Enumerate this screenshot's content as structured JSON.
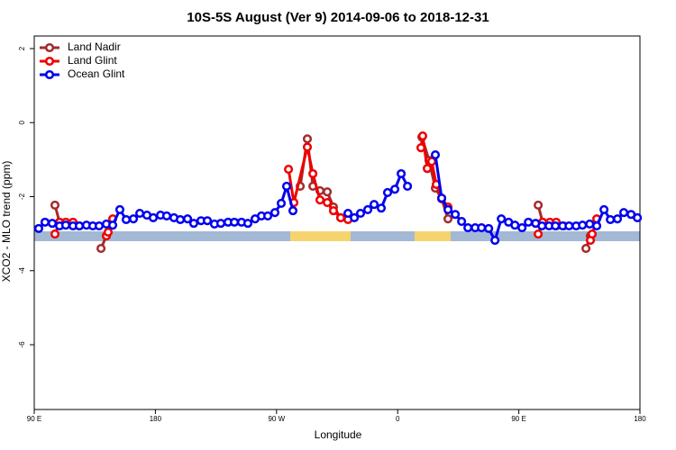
{
  "chart_data": {
    "type": "line",
    "title": "10S-5S August (Ver 9)   2014-09-06 to 2018-12-31",
    "xlabel": "Longitude",
    "ylabel": "XCO2 - MLO trend (ppm)",
    "xlim": [
      90,
      540
    ],
    "xticks": [
      {
        "value": 90,
        "label": "90 E"
      },
      {
        "value": 180,
        "label": "180"
      },
      {
        "value": 270,
        "label": "90 W"
      },
      {
        "value": 360,
        "label": "0"
      },
      {
        "value": 450,
        "label": "90 E"
      },
      {
        "value": 540,
        "label": "180"
      }
    ],
    "ylim": [
      -7.75,
      2.34
    ],
    "yticks": [
      2,
      0,
      -2,
      -4,
      -6
    ],
    "legend": "top-left",
    "series": [
      {
        "name": "Land Nadir",
        "color": "#a52a2a",
        "x": [
          105.4,
          108.8,
          113.4,
          118.8,
          123.5,
          null,
          139.6,
          143.6,
          null,
          287.6,
          292.9,
          297.0,
          302.3,
          307.7,
          312.3,
          317.7,
          null,
          378.0,
          383.3,
          388.0,
          392.7,
          397.4,
          null,
          464.4,
          467.7,
          473.1,
          477.8,
          483.1,
          null,
          499.9,
          503.2
        ],
        "values": [
          -2.23,
          -2.69,
          -2.74,
          -2.77,
          -2.79,
          null,
          -3.4,
          -3.06,
          null,
          -1.72,
          -0.44,
          -1.72,
          -1.84,
          -1.87,
          -2.28,
          -2.57,
          null,
          -0.39,
          -1.02,
          -1.77,
          -2.06,
          -2.6,
          null,
          -2.23,
          -2.69,
          -2.74,
          -2.79,
          -2.79,
          null,
          -3.4,
          -3.06
        ]
      },
      {
        "name": "Land Glint",
        "color": "#ee0000",
        "x": [
          105.4,
          108.8,
          113.4,
          118.8,
          123.5,
          null,
          143.6,
          144.9,
          148.3,
          null,
          278.9,
          282.9,
          292.9,
          297.0,
          302.3,
          307.7,
          312.3,
          317.7,
          323.1,
          null,
          377.3,
          378.6,
          382.0,
          385.3,
          388.7,
          392.7,
          397.4,
          null,
          464.4,
          467.7,
          473.1,
          477.8,
          483.1,
          null,
          503.2,
          504.5,
          507.9
        ],
        "values": [
          -3.01,
          -2.69,
          -2.69,
          -2.69,
          -2.79,
          null,
          -3.06,
          -2.96,
          -2.6,
          null,
          -1.26,
          -2.16,
          -0.66,
          -1.38,
          -2.09,
          -2.16,
          -2.38,
          -2.57,
          -2.62,
          null,
          -0.68,
          -0.36,
          -1.24,
          -1.05,
          -1.67,
          -2.04,
          -2.28,
          null,
          -3.01,
          -2.69,
          -2.69,
          -2.69,
          -2.79,
          null,
          -3.18,
          -3.01,
          -2.6
        ]
      },
      {
        "name": "Ocean Glint",
        "color": "#0000ee",
        "x": [
          93.3,
          98.0,
          103.4,
          108.8,
          113.4,
          118.8,
          123.5,
          128.8,
          133.5,
          138.2,
          143.6,
          148.3,
          153.6,
          158.3,
          163.7,
          168.4,
          173.7,
          178.4,
          183.8,
          188.4,
          193.8,
          198.5,
          203.9,
          208.5,
          213.9,
          218.6,
          223.9,
          228.6,
          234.0,
          238.7,
          244.0,
          248.7,
          254.1,
          258.8,
          263.5,
          268.8,
          273.5,
          277.5,
          282.2,
          null,
          323.1,
          327.8,
          332.4,
          337.8,
          342.5,
          347.8,
          352.5,
          357.9,
          362.6,
          367.3,
          null,
          388.0,
          392.7,
          397.4,
          402.8,
          407.5,
          412.2,
          417.6,
          422.3,
          427.6,
          432.3,
          437.0,
          442.4,
          447.1,
          452.4,
          457.1,
          462.5,
          467.2,
          472.5,
          477.2,
          482.6,
          487.3,
          492.6,
          497.3,
          502.7,
          507.9,
          513.3,
          518.0,
          523.3,
          528.0,
          533.4,
          538.1
        ],
        "values": [
          -2.86,
          -2.69,
          -2.72,
          -2.79,
          -2.77,
          -2.79,
          -2.79,
          -2.77,
          -2.79,
          -2.79,
          -2.74,
          -2.77,
          -2.35,
          -2.62,
          -2.6,
          -2.45,
          -2.5,
          -2.57,
          -2.5,
          -2.52,
          -2.57,
          -2.62,
          -2.6,
          -2.72,
          -2.65,
          -2.65,
          -2.74,
          -2.72,
          -2.69,
          -2.69,
          -2.69,
          -2.72,
          -2.6,
          -2.52,
          -2.52,
          -2.43,
          -2.18,
          -1.72,
          -2.38,
          null,
          -2.45,
          -2.57,
          -2.45,
          -2.35,
          -2.21,
          -2.31,
          -1.89,
          -1.8,
          -1.38,
          -1.72,
          null,
          -0.87,
          -2.04,
          -2.35,
          -2.48,
          -2.67,
          -2.84,
          -2.84,
          -2.84,
          -2.86,
          -3.18,
          -2.6,
          -2.69,
          -2.77,
          -2.84,
          -2.69,
          -2.72,
          -2.79,
          -2.79,
          -2.79,
          -2.79,
          -2.79,
          -2.79,
          -2.77,
          -2.74,
          -2.79,
          -2.35,
          -2.62,
          -2.6,
          -2.43,
          -2.48,
          -2.57
        ]
      }
    ]
  }
}
